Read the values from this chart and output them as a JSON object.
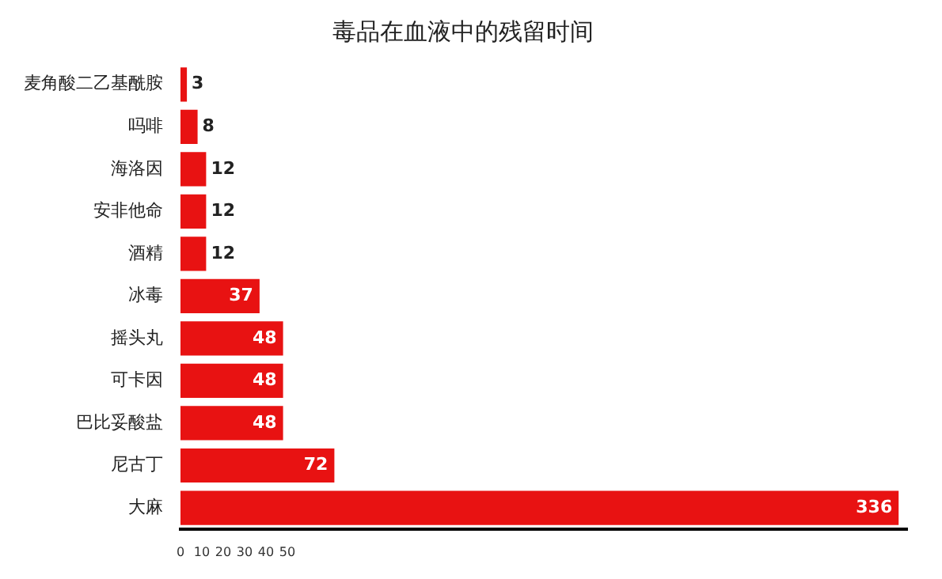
{
  "chart_data": {
    "type": "bar",
    "orientation": "horizontal",
    "title": "毒品在血液中的残留时间",
    "categories": [
      "麦角酸二乙基酰胺",
      "吗啡",
      "海洛因",
      "安非他命",
      "酒精",
      "冰毒",
      "摇头丸",
      "可卡因",
      "巴比妥酸盐",
      "尼古丁",
      "大麻"
    ],
    "values": [
      3,
      8,
      12,
      12,
      12,
      37,
      48,
      48,
      48,
      72,
      336
    ],
    "color": "#e81212",
    "xlim": [
      0,
      340
    ],
    "xticks": [
      0,
      10,
      20,
      30,
      40,
      50
    ],
    "data_labels": true,
    "grid": false,
    "legend": false
  }
}
